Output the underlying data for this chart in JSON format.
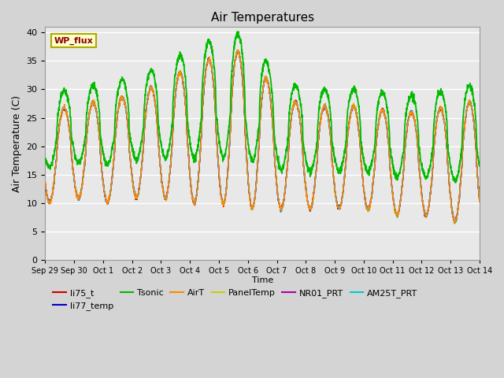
{
  "title": "Air Temperatures",
  "xlabel": "Time",
  "ylabel": "Air Temperature (C)",
  "ylim": [
    0,
    41
  ],
  "yticks": [
    0,
    5,
    10,
    15,
    20,
    25,
    30,
    35,
    40
  ],
  "plot_bg_color": "#e8e8e8",
  "fig_bg_color": "#d4d4d4",
  "series": {
    "li75_t": {
      "color": "#cc0000",
      "lw": 1.0
    },
    "li77_temp": {
      "color": "#0000cc",
      "lw": 1.0
    },
    "Tsonic": {
      "color": "#00bb00",
      "lw": 1.3
    },
    "AirT": {
      "color": "#ff8800",
      "lw": 1.0
    },
    "PanelTemp": {
      "color": "#cccc00",
      "lw": 1.0
    },
    "NR01_PRT": {
      "color": "#aa00aa",
      "lw": 1.0
    },
    "AM25T_PRT": {
      "color": "#00cccc",
      "lw": 1.0
    }
  },
  "annotation": {
    "text": "WP_flux",
    "fontsize": 8,
    "color": "#8b0000",
    "bg": "#ffffcc",
    "border": "#aaaa00"
  },
  "tick_labels": [
    "Sep 29",
    "Sep 30",
    "Oct 1",
    "Oct 2",
    "Oct 3",
    "Oct 4",
    "Oct 5",
    "Oct 6",
    "Oct 7",
    "Oct 8",
    "Oct 9",
    "Oct 10",
    "Oct 11",
    "Oct 12",
    "Oct 13",
    "Oct 14"
  ],
  "n_days": 15,
  "pts_per_day": 144
}
